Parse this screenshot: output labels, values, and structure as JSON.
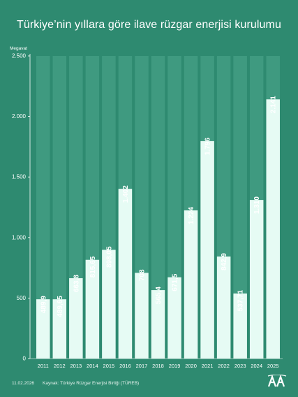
{
  "page": {
    "title": "Türkiye’nin yıllara göre ilave rüzgar enerjisi kurulumu",
    "date": "11.02.2026",
    "source": "Kaynak: Türkiye Rüzgar Enerjisi Birliği (TÜREB)",
    "logo_text": "AA"
  },
  "colors": {
    "background": "#2e8a70",
    "column_band": "#3f9a80",
    "bar": "#e6fbf4",
    "text": "#ffffff"
  },
  "chart_data": {
    "type": "bar",
    "title": "Türkiye’nin yıllara göre ilave rüzgar enerjisi kurulumu",
    "ylabel": "Megavat",
    "xlabel": "",
    "categories": [
      "2011",
      "2012",
      "2013",
      "2014",
      "2015",
      "2016",
      "2017",
      "2018",
      "2019",
      "2020",
      "2021",
      "2022",
      "2023",
      "2024",
      "2025"
    ],
    "values": [
      489.9,
      489.65,
      663.8,
      815.65,
      898.05,
      1402,
      708,
      565.4,
      671.5,
      1224,
      1796,
      842.9,
      537.71,
      1310,
      2141
    ],
    "value_labels": [
      "489,9",
      "489,65",
      "663,8",
      "815,65",
      "898,05",
      "1.402",
      "708",
      "565,4",
      "671,5",
      "1.224",
      "1.796",
      "842,9",
      "537,71",
      "1.310",
      "2.141"
    ],
    "ylim": [
      0,
      2500
    ],
    "yticks": [
      0,
      500,
      1000,
      1500,
      2000,
      2500
    ],
    "ytick_labels": [
      "0",
      "500",
      "1.000",
      "1.500",
      "2.000",
      "2.500"
    ],
    "grid": false
  }
}
